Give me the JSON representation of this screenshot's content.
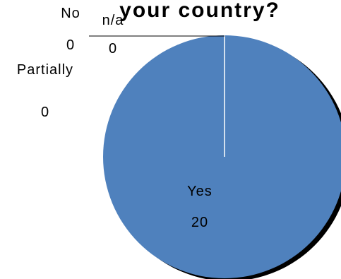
{
  "chart_data": {
    "type": "pie",
    "title": "your country?",
    "categories": [
      "Yes",
      "No",
      "n/a",
      "Partially"
    ],
    "values": [
      20,
      0,
      0,
      0
    ],
    "colors": {
      "slice": "#4f81bd",
      "shadow": "#000000",
      "separator": "#ffffff"
    },
    "legend": "none",
    "data_labels": true
  }
}
